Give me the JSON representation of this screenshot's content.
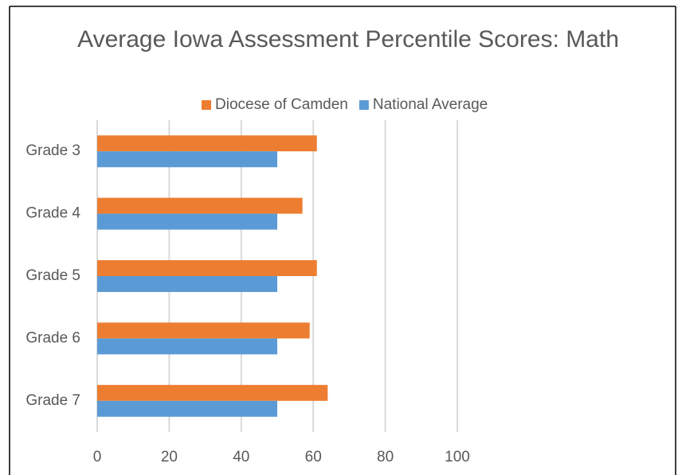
{
  "chart_data": {
    "type": "barh",
    "title": "Average Iowa Assessment Percentile Scores: Math",
    "categories": [
      "Grade 3",
      "Grade 4",
      "Grade 5",
      "Grade 6",
      "Grade 7"
    ],
    "series": [
      {
        "name": "Diocese of Camden",
        "color": "#ed7d31",
        "values": [
          61,
          57,
          61,
          59,
          64
        ]
      },
      {
        "name": "National Average",
        "color": "#5b9bd5",
        "values": [
          50,
          50,
          50,
          50,
          50
        ]
      }
    ],
    "xlim": [
      0,
      100
    ],
    "xticks": [
      0,
      20,
      40,
      60,
      80,
      100
    ],
    "grid": true,
    "legend": "top"
  }
}
